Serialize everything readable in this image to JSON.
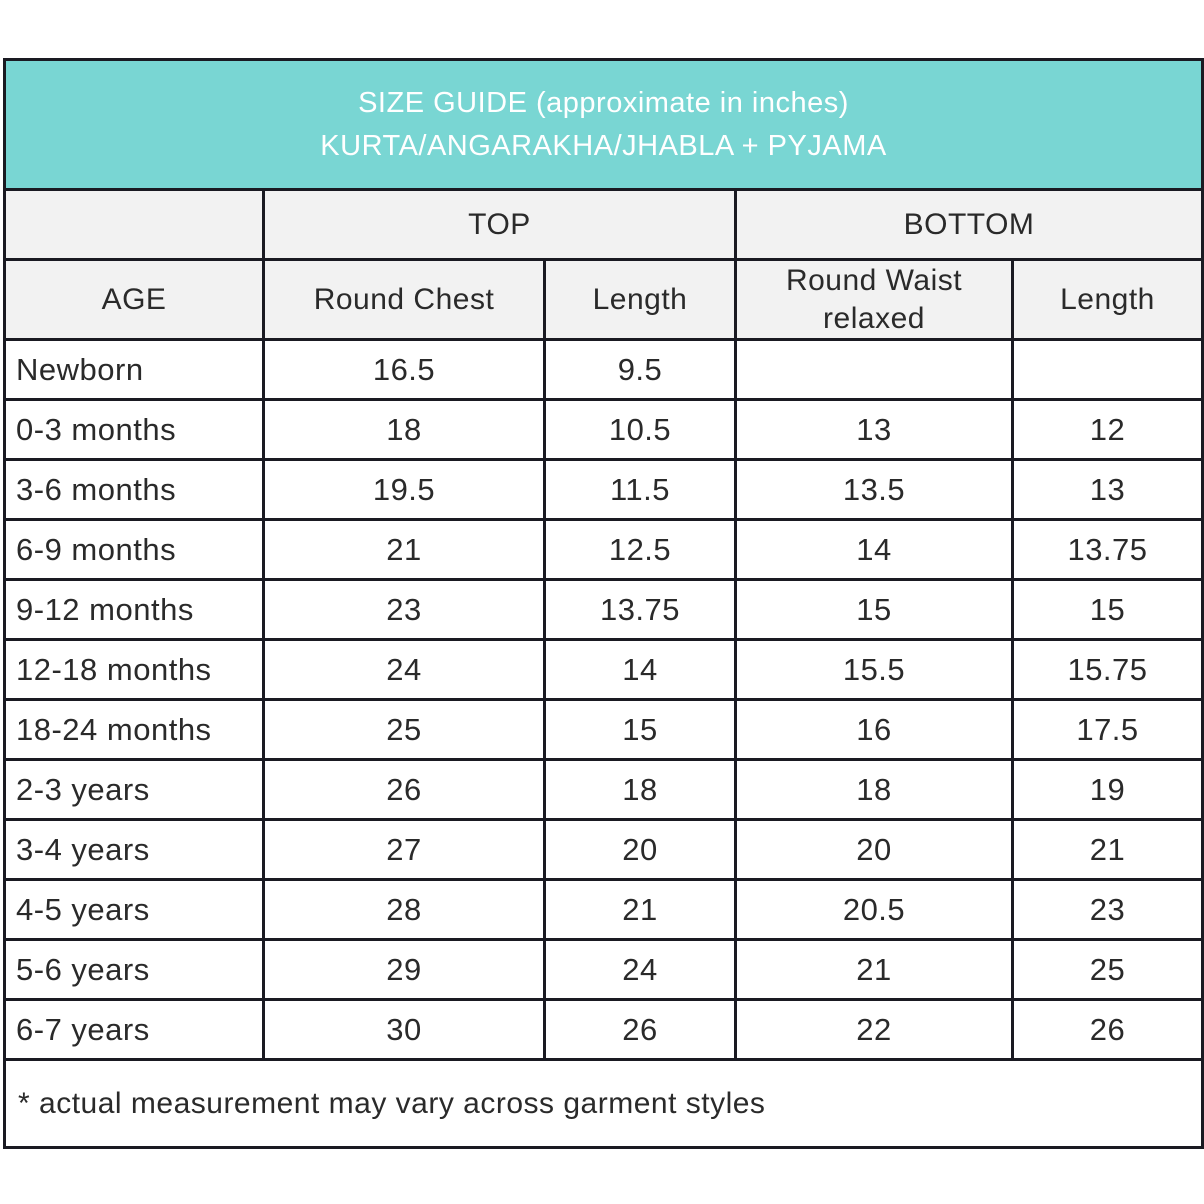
{
  "title": {
    "line1": "SIZE GUIDE (approximate in inches)",
    "line2": "KURTA/ANGARAKHA/JHABLA + PYJAMA"
  },
  "colors": {
    "header_bg": "#79D6D3",
    "header_text": "#FFFFFF",
    "subheader_bg": "#F2F2F2",
    "border": "#1A1A22",
    "text": "#2A2A2A"
  },
  "group_headers": {
    "top": "TOP",
    "bottom": "BOTTOM"
  },
  "column_headers": {
    "age": "AGE",
    "round_chest": "Round Chest",
    "top_length": "Length",
    "round_waist": "Round Waist relaxed",
    "bottom_length": "Length"
  },
  "rows": [
    {
      "age": "Newborn",
      "round_chest": "16.5",
      "top_length": "9.5",
      "round_waist": "",
      "bottom_length": ""
    },
    {
      "age": "0-3 months",
      "round_chest": "18",
      "top_length": "10.5",
      "round_waist": "13",
      "bottom_length": "12"
    },
    {
      "age": "3-6 months",
      "round_chest": "19.5",
      "top_length": "11.5",
      "round_waist": "13.5",
      "bottom_length": "13"
    },
    {
      "age": "6-9 months",
      "round_chest": "21",
      "top_length": "12.5",
      "round_waist": "14",
      "bottom_length": "13.75"
    },
    {
      "age": "9-12 months",
      "round_chest": "23",
      "top_length": "13.75",
      "round_waist": "15",
      "bottom_length": "15"
    },
    {
      "age": "12-18 months",
      "round_chest": "24",
      "top_length": "14",
      "round_waist": "15.5",
      "bottom_length": "15.75"
    },
    {
      "age": "18-24 months",
      "round_chest": "25",
      "top_length": "15",
      "round_waist": "16",
      "bottom_length": "17.5"
    },
    {
      "age": "2-3 years",
      "round_chest": "26",
      "top_length": "18",
      "round_waist": "18",
      "bottom_length": "19"
    },
    {
      "age": "3-4 years",
      "round_chest": "27",
      "top_length": "20",
      "round_waist": "20",
      "bottom_length": "21"
    },
    {
      "age": "4-5 years",
      "round_chest": "28",
      "top_length": "21",
      "round_waist": "20.5",
      "bottom_length": "23"
    },
    {
      "age": "5-6 years",
      "round_chest": "29",
      "top_length": "24",
      "round_waist": "21",
      "bottom_length": "25"
    },
    {
      "age": "6-7 years",
      "round_chest": "30",
      "top_length": "26",
      "round_waist": "22",
      "bottom_length": "26"
    }
  ],
  "footnote": "* actual measurement may vary across garment styles"
}
